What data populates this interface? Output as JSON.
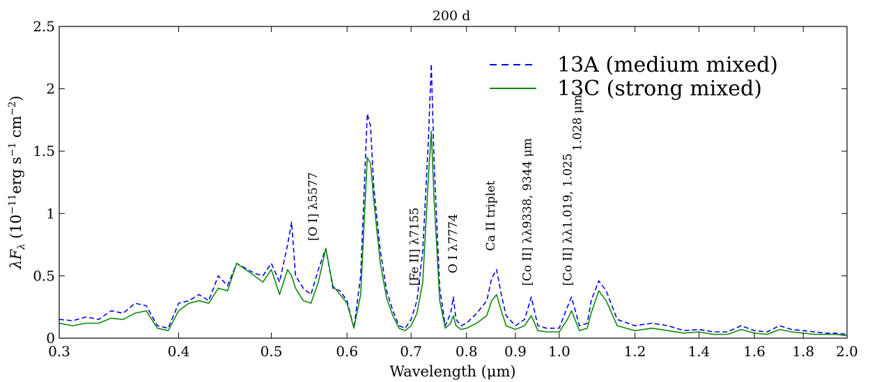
{
  "chart_data": {
    "type": "line",
    "title": "200 d",
    "xlabel": "Wavelength (μm)",
    "ylabel": "λF",
    "ylabel_sub": "λ",
    "ylabel_units": "(10",
    "ylabel_exp1": "−11",
    "ylabel_units2": "erg s",
    "ylabel_exp2": "−1",
    "ylabel_units3": "cm",
    "ylabel_exp3": "−2",
    "ylabel_close": ")",
    "x_scale": "log",
    "xlim": [
      0.3,
      2.0
    ],
    "ylim": [
      0,
      2.5
    ],
    "x_ticks": [
      0.3,
      0.4,
      0.5,
      0.6,
      0.7,
      0.8,
      0.9,
      1.0,
      1.2,
      1.4,
      1.6,
      1.8,
      2.0
    ],
    "x_tick_labels": [
      "0.3",
      "0.4",
      "0.5",
      "0.6",
      "0.7",
      "0.8",
      "0.9",
      "1.0",
      "1.2",
      "1.4",
      "1.6",
      "1.8",
      "2.0"
    ],
    "y_ticks": [
      0,
      0.5,
      1,
      1.5,
      2,
      2.5
    ],
    "y_tick_labels": [
      "0",
      "0.5",
      "1",
      "1.5",
      "2",
      "2.5"
    ],
    "grid": false,
    "legend_position": "top-right",
    "series": [
      {
        "name": "13A (medium mixed)",
        "color": "#0000ee",
        "style": "dashed",
        "x": [
          0.3,
          0.31,
          0.32,
          0.33,
          0.34,
          0.35,
          0.36,
          0.37,
          0.38,
          0.39,
          0.4,
          0.41,
          0.42,
          0.43,
          0.44,
          0.45,
          0.46,
          0.47,
          0.48,
          0.49,
          0.5,
          0.51,
          0.52,
          0.525,
          0.53,
          0.54,
          0.55,
          0.56,
          0.57,
          0.58,
          0.59,
          0.6,
          0.61,
          0.62,
          0.63,
          0.635,
          0.64,
          0.65,
          0.66,
          0.67,
          0.68,
          0.69,
          0.7,
          0.71,
          0.72,
          0.73,
          0.735,
          0.74,
          0.75,
          0.76,
          0.77,
          0.775,
          0.78,
          0.79,
          0.8,
          0.82,
          0.84,
          0.85,
          0.86,
          0.87,
          0.88,
          0.9,
          0.92,
          0.935,
          0.95,
          0.97,
          1.0,
          1.02,
          1.03,
          1.05,
          1.07,
          1.08,
          1.1,
          1.12,
          1.15,
          1.2,
          1.25,
          1.3,
          1.35,
          1.4,
          1.45,
          1.5,
          1.55,
          1.6,
          1.65,
          1.7,
          1.75,
          1.8,
          1.85,
          1.9,
          1.95,
          2.0
        ],
        "y": [
          0.15,
          0.14,
          0.17,
          0.15,
          0.22,
          0.2,
          0.28,
          0.26,
          0.1,
          0.08,
          0.28,
          0.3,
          0.35,
          0.3,
          0.5,
          0.42,
          0.6,
          0.56,
          0.52,
          0.5,
          0.6,
          0.45,
          0.75,
          0.93,
          0.5,
          0.4,
          0.35,
          0.55,
          0.72,
          0.4,
          0.38,
          0.3,
          0.08,
          0.5,
          1.8,
          1.7,
          1.2,
          0.7,
          0.38,
          0.22,
          0.1,
          0.08,
          0.15,
          0.3,
          0.7,
          1.6,
          2.2,
          1.4,
          0.4,
          0.1,
          0.2,
          0.33,
          0.15,
          0.1,
          0.12,
          0.2,
          0.3,
          0.48,
          0.55,
          0.35,
          0.18,
          0.1,
          0.15,
          0.33,
          0.1,
          0.08,
          0.08,
          0.25,
          0.33,
          0.1,
          0.12,
          0.3,
          0.46,
          0.38,
          0.15,
          0.1,
          0.12,
          0.1,
          0.06,
          0.07,
          0.05,
          0.05,
          0.1,
          0.06,
          0.05,
          0.1,
          0.07,
          0.06,
          0.05,
          0.04,
          0.04,
          0.03
        ]
      },
      {
        "name": "13C (strong mixed)",
        "color": "#0a8a0a",
        "style": "solid",
        "x": [
          0.3,
          0.31,
          0.32,
          0.33,
          0.34,
          0.35,
          0.36,
          0.37,
          0.38,
          0.39,
          0.4,
          0.41,
          0.42,
          0.43,
          0.44,
          0.45,
          0.46,
          0.47,
          0.48,
          0.49,
          0.5,
          0.51,
          0.52,
          0.525,
          0.53,
          0.54,
          0.55,
          0.56,
          0.57,
          0.58,
          0.59,
          0.6,
          0.61,
          0.62,
          0.63,
          0.635,
          0.64,
          0.65,
          0.66,
          0.67,
          0.68,
          0.69,
          0.7,
          0.71,
          0.72,
          0.73,
          0.735,
          0.74,
          0.75,
          0.76,
          0.77,
          0.775,
          0.78,
          0.79,
          0.8,
          0.82,
          0.84,
          0.85,
          0.86,
          0.87,
          0.88,
          0.9,
          0.92,
          0.935,
          0.95,
          0.97,
          1.0,
          1.02,
          1.03,
          1.05,
          1.07,
          1.08,
          1.1,
          1.12,
          1.15,
          1.2,
          1.25,
          1.3,
          1.35,
          1.4,
          1.45,
          1.5,
          1.55,
          1.6,
          1.65,
          1.7,
          1.75,
          1.8,
          1.85,
          1.9,
          1.95,
          2.0
        ],
        "y": [
          0.12,
          0.1,
          0.12,
          0.12,
          0.16,
          0.15,
          0.2,
          0.22,
          0.08,
          0.06,
          0.22,
          0.28,
          0.3,
          0.28,
          0.4,
          0.38,
          0.6,
          0.55,
          0.5,
          0.45,
          0.55,
          0.35,
          0.55,
          0.5,
          0.4,
          0.3,
          0.28,
          0.45,
          0.72,
          0.42,
          0.35,
          0.28,
          0.08,
          0.35,
          1.45,
          1.4,
          1.1,
          0.6,
          0.32,
          0.18,
          0.08,
          0.06,
          0.1,
          0.2,
          0.45,
          1.3,
          1.66,
          1.1,
          0.3,
          0.08,
          0.12,
          0.18,
          0.1,
          0.07,
          0.08,
          0.12,
          0.18,
          0.3,
          0.35,
          0.22,
          0.1,
          0.07,
          0.1,
          0.18,
          0.06,
          0.05,
          0.05,
          0.15,
          0.22,
          0.06,
          0.08,
          0.2,
          0.38,
          0.3,
          0.1,
          0.06,
          0.08,
          0.06,
          0.04,
          0.05,
          0.03,
          0.03,
          0.07,
          0.04,
          0.03,
          0.07,
          0.05,
          0.04,
          0.03,
          0.03,
          0.03,
          0.02
        ]
      }
    ],
    "annotations": [
      {
        "text": "[O I] λ5577",
        "x": 0.558,
        "y": 0.78
      },
      {
        "text": "[Fe II] λ7155",
        "x": 0.712,
        "y": 0.42
      },
      {
        "text": "O I λ7774",
        "x": 0.782,
        "y": 0.52
      },
      {
        "text": "Ca II triplet",
        "x": 0.856,
        "y": 0.7
      },
      {
        "text": "[Co II] λλ9338, 9344 μm",
        "x": 0.935,
        "y": 0.42
      },
      {
        "text": "[Co II] λλ1.019, 1.025",
        "x": 1.03,
        "y": 0.42
      },
      {
        "text": "1.028 μm",
        "x": 1.055,
        "y": 1.5
      }
    ]
  }
}
